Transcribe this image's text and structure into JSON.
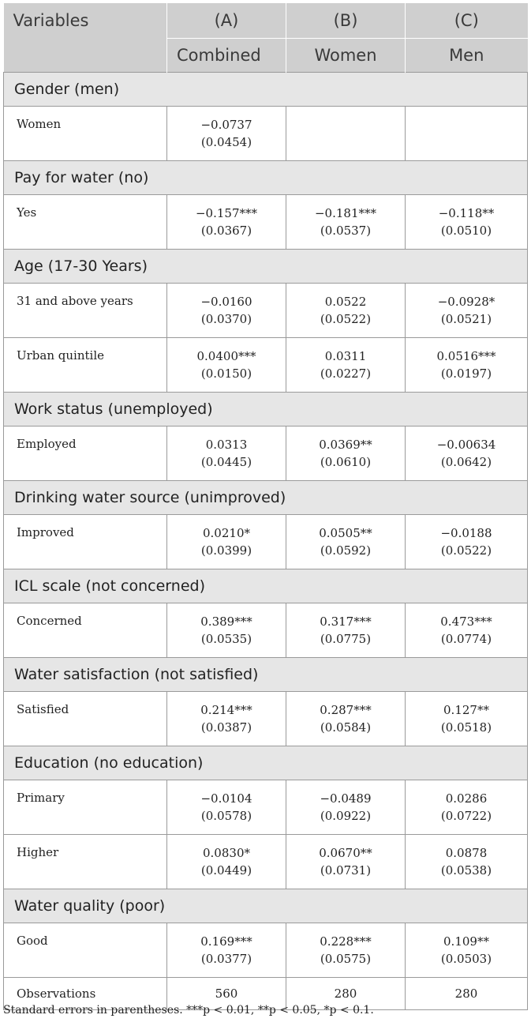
{
  "header": {
    "variables_label": "Variables",
    "columns": [
      {
        "id": "(A)",
        "name": "Combined"
      },
      {
        "id": "(B)",
        "name": "Women"
      },
      {
        "id": "(C)",
        "name": "Men"
      }
    ]
  },
  "sections": [
    {
      "title": "Gender (men)",
      "rows": [
        {
          "label": "Women",
          "cells": [
            {
              "coef": "−0.0737",
              "se": "(0.0454)"
            },
            {
              "coef": "",
              "se": ""
            },
            {
              "coef": "",
              "se": ""
            }
          ]
        }
      ]
    },
    {
      "title": "Pay for water (no)",
      "rows": [
        {
          "label": "Yes",
          "cells": [
            {
              "coef": "−0.157***",
              "se": "(0.0367)"
            },
            {
              "coef": "−0.181***",
              "se": "(0.0537)"
            },
            {
              "coef": "−0.118**",
              "se": "(0.0510)"
            }
          ]
        }
      ]
    },
    {
      "title": "Age (17-30 Years)",
      "rows": [
        {
          "label": "31 and above years",
          "cells": [
            {
              "coef": "−0.0160",
              "se": "(0.0370)"
            },
            {
              "coef": "0.0522",
              "se": "(0.0522)"
            },
            {
              "coef": "−0.0928*",
              "se": "(0.0521)"
            }
          ]
        },
        {
          "label": "Urban quintile",
          "cells": [
            {
              "coef": "0.0400***",
              "se": "(0.0150)"
            },
            {
              "coef": "0.0311",
              "se": "(0.0227)"
            },
            {
              "coef": "0.0516***",
              "se": "(0.0197)"
            }
          ]
        }
      ]
    },
    {
      "title": "Work status (unemployed)",
      "rows": [
        {
          "label": "Employed",
          "cells": [
            {
              "coef": "0.0313",
              "se": "(0.0445)"
            },
            {
              "coef": "0.0369**",
              "se": "(0.0610)"
            },
            {
              "coef": "−0.00634",
              "se": "(0.0642)"
            }
          ]
        }
      ]
    },
    {
      "title": "Drinking water source (unimproved)",
      "rows": [
        {
          "label": "Improved",
          "cells": [
            {
              "coef": "0.0210*",
              "se": "(0.0399)"
            },
            {
              "coef": "0.0505**",
              "se": "(0.0592)"
            },
            {
              "coef": "−0.0188",
              "se": "(0.0522)"
            }
          ]
        }
      ]
    },
    {
      "title": "ICL scale (not concerned)",
      "rows": [
        {
          "label": "Concerned",
          "cells": [
            {
              "coef": "0.389***",
              "se": "(0.0535)"
            },
            {
              "coef": "0.317***",
              "se": "(0.0775)"
            },
            {
              "coef": "0.473***",
              "se": "(0.0774)"
            }
          ]
        }
      ]
    },
    {
      "title": "Water satisfaction (not satisfied)",
      "rows": [
        {
          "label": "Satisfied",
          "cells": [
            {
              "coef": "0.214***",
              "se": "(0.0387)"
            },
            {
              "coef": "0.287***",
              "se": "(0.0584)"
            },
            {
              "coef": "0.127**",
              "se": "(0.0518)"
            }
          ]
        }
      ]
    },
    {
      "title": "Education (no education)",
      "rows": [
        {
          "label": "Primary",
          "cells": [
            {
              "coef": "−0.0104",
              "se": "(0.0578)"
            },
            {
              "coef": "−0.0489",
              "se": "(0.0922)"
            },
            {
              "coef": "0.0286",
              "se": "(0.0722)"
            }
          ]
        },
        {
          "label": "Higher",
          "cells": [
            {
              "coef": "0.0830*",
              "se": "(0.0449)"
            },
            {
              "coef": "0.0670**",
              "se": "(0.0731)"
            },
            {
              "coef": "0.0878",
              "se": "(0.0538)"
            }
          ]
        }
      ]
    },
    {
      "title": "Water quality (poor)",
      "rows": [
        {
          "label": "Good",
          "cells": [
            {
              "coef": "0.169***",
              "se": "(0.0377)"
            },
            {
              "coef": "0.228***",
              "se": "(0.0575)"
            },
            {
              "coef": "0.109**",
              "se": "(0.0503)"
            }
          ]
        }
      ]
    }
  ],
  "observations": {
    "label": "Observations",
    "values": [
      "560",
      "280",
      "280"
    ]
  },
  "footnote": "Standard errors in parentheses. ***p < 0.01, **p < 0.05, *p < 0.1."
}
